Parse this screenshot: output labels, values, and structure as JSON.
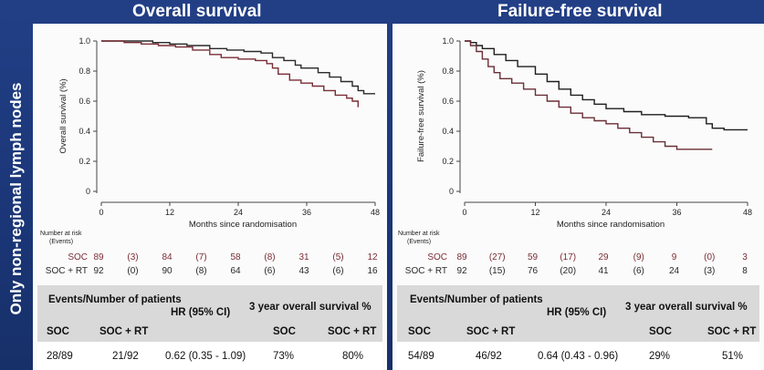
{
  "side_label": "Only non-regional lymph nodes",
  "chart_data": [
    {
      "type": "line",
      "title": "Overall survival",
      "xlabel": "Months since randomisation",
      "ylabel": "Overall survival (%)",
      "xlim": [
        0,
        48
      ],
      "ylim": [
        0,
        1
      ],
      "xticks": [
        0,
        12,
        24,
        36,
        48
      ],
      "yticks": [
        0,
        0.2,
        0.4,
        0.6,
        0.8,
        1.0
      ],
      "ytick_labels": [
        "0",
        "0.2",
        "0.4",
        "0.6",
        "0.8",
        "1.0"
      ],
      "series": [
        {
          "color": "#2a2a2a",
          "points": [
            [
              0,
              1.0
            ],
            [
              5,
              1.0
            ],
            [
              9,
              0.99
            ],
            [
              12,
              0.98
            ],
            [
              15,
              0.97
            ],
            [
              19,
              0.95
            ],
            [
              22,
              0.94
            ],
            [
              25,
              0.93
            ],
            [
              28,
              0.92
            ],
            [
              30,
              0.89
            ],
            [
              32,
              0.87
            ],
            [
              34,
              0.84
            ],
            [
              35,
              0.82
            ],
            [
              38,
              0.79
            ],
            [
              40,
              0.76
            ],
            [
              42,
              0.73
            ],
            [
              44,
              0.7
            ],
            [
              45,
              0.67
            ],
            [
              46,
              0.65
            ],
            [
              48,
              0.65
            ]
          ]
        },
        {
          "color": "#7a2d36",
          "points": [
            [
              0,
              1.0
            ],
            [
              4,
              0.99
            ],
            [
              7,
              0.98
            ],
            [
              10,
              0.97
            ],
            [
              13,
              0.96
            ],
            [
              16,
              0.94
            ],
            [
              19,
              0.91
            ],
            [
              21,
              0.89
            ],
            [
              24,
              0.88
            ],
            [
              27,
              0.87
            ],
            [
              29,
              0.85
            ],
            [
              30,
              0.82
            ],
            [
              31,
              0.78
            ],
            [
              33,
              0.74
            ],
            [
              35,
              0.72
            ],
            [
              37,
              0.7
            ],
            [
              39,
              0.67
            ],
            [
              41,
              0.64
            ],
            [
              43,
              0.62
            ],
            [
              44,
              0.6
            ],
            [
              45,
              0.56
            ]
          ]
        }
      ],
      "risk_table": {
        "header": "Number at risk",
        "subheader": "(Events)",
        "rows": [
          {
            "label": "SOC",
            "color": "#7a2d36",
            "values": [
              "89",
              "(3)",
              "84",
              "(7)",
              "58",
              "(8)",
              "31",
              "(5)",
              "12"
            ]
          },
          {
            "label": "SOC + RT",
            "color": "#2a2a2a",
            "values": [
              "92",
              "(0)",
              "90",
              "(8)",
              "64",
              "(6)",
              "43",
              "(6)",
              "16"
            ]
          }
        ]
      }
    },
    {
      "type": "line",
      "title": "Failure-free survival",
      "xlabel": "Months since randomisation",
      "ylabel": "Failure-free survival (%)",
      "xlim": [
        0,
        48
      ],
      "ylim": [
        0,
        1
      ],
      "xticks": [
        0,
        12,
        24,
        36,
        48
      ],
      "yticks": [
        0,
        0.2,
        0.4,
        0.6,
        0.8,
        1.0
      ],
      "ytick_labels": [
        "0",
        "0.2",
        "0.4",
        "0.6",
        "0.8",
        "1.0"
      ],
      "series": [
        {
          "color": "#1e1e1e",
          "points": [
            [
              0,
              1.0
            ],
            [
              1,
              0.99
            ],
            [
              2,
              0.97
            ],
            [
              3,
              0.95
            ],
            [
              5,
              0.91
            ],
            [
              7,
              0.87
            ],
            [
              9,
              0.83
            ],
            [
              12,
              0.78
            ],
            [
              14,
              0.73
            ],
            [
              16,
              0.68
            ],
            [
              18,
              0.64
            ],
            [
              20,
              0.61
            ],
            [
              22,
              0.58
            ],
            [
              24,
              0.55
            ],
            [
              27,
              0.53
            ],
            [
              30,
              0.51
            ],
            [
              34,
              0.5
            ],
            [
              38,
              0.49
            ],
            [
              40,
              0.49
            ],
            [
              41,
              0.45
            ],
            [
              42,
              0.42
            ],
            [
              44,
              0.41
            ],
            [
              48,
              0.41
            ]
          ]
        },
        {
          "color": "#6a2f37",
          "points": [
            [
              0,
              1.0
            ],
            [
              1,
              0.97
            ],
            [
              2,
              0.93
            ],
            [
              3,
              0.88
            ],
            [
              4,
              0.83
            ],
            [
              5,
              0.79
            ],
            [
              6,
              0.75
            ],
            [
              8,
              0.72
            ],
            [
              10,
              0.68
            ],
            [
              12,
              0.64
            ],
            [
              14,
              0.6
            ],
            [
              16,
              0.56
            ],
            [
              18,
              0.52
            ],
            [
              20,
              0.49
            ],
            [
              22,
              0.47
            ],
            [
              24,
              0.45
            ],
            [
              26,
              0.42
            ],
            [
              28,
              0.39
            ],
            [
              30,
              0.36
            ],
            [
              32,
              0.33
            ],
            [
              34,
              0.3
            ],
            [
              36,
              0.28
            ],
            [
              42,
              0.28
            ]
          ]
        }
      ],
      "risk_table": {
        "header": "Number at risk",
        "subheader": "(Events)",
        "rows": [
          {
            "label": "SOC",
            "color": "#7a2d36",
            "values": [
              "89",
              "(27)",
              "59",
              "(17)",
              "29",
              "(9)",
              "9",
              "(0)",
              "3"
            ]
          },
          {
            "label": "SOC + RT",
            "color": "#2a2a2a",
            "values": [
              "92",
              "(15)",
              "76",
              "(20)",
              "41",
              "(6)",
              "24",
              "(3)",
              "8"
            ]
          }
        ]
      }
    }
  ],
  "tables": [
    {
      "events_header": "Events/Number of patients",
      "hr_header": "HR (95% CI)",
      "survival_header": "3 year overall survival %",
      "sub_soc": "SOC",
      "sub_socrt": "SOC + RT",
      "events_soc": "28/89",
      "events_socrt": "21/92",
      "hr": "0.62 (0.35 - 1.09)",
      "surv_soc": "73%",
      "surv_socrt": "80%"
    },
    {
      "events_header": "Events/Number of patients",
      "hr_header": "HR (95% CI)",
      "survival_header": "3 year overall survival %",
      "sub_soc": "SOC",
      "sub_socrt": "SOC + RT",
      "events_soc": "54/89",
      "events_socrt": "46/92",
      "hr": "0.64 (0.43 - 0.96)",
      "surv_soc": "29%",
      "surv_socrt": "51%"
    }
  ]
}
